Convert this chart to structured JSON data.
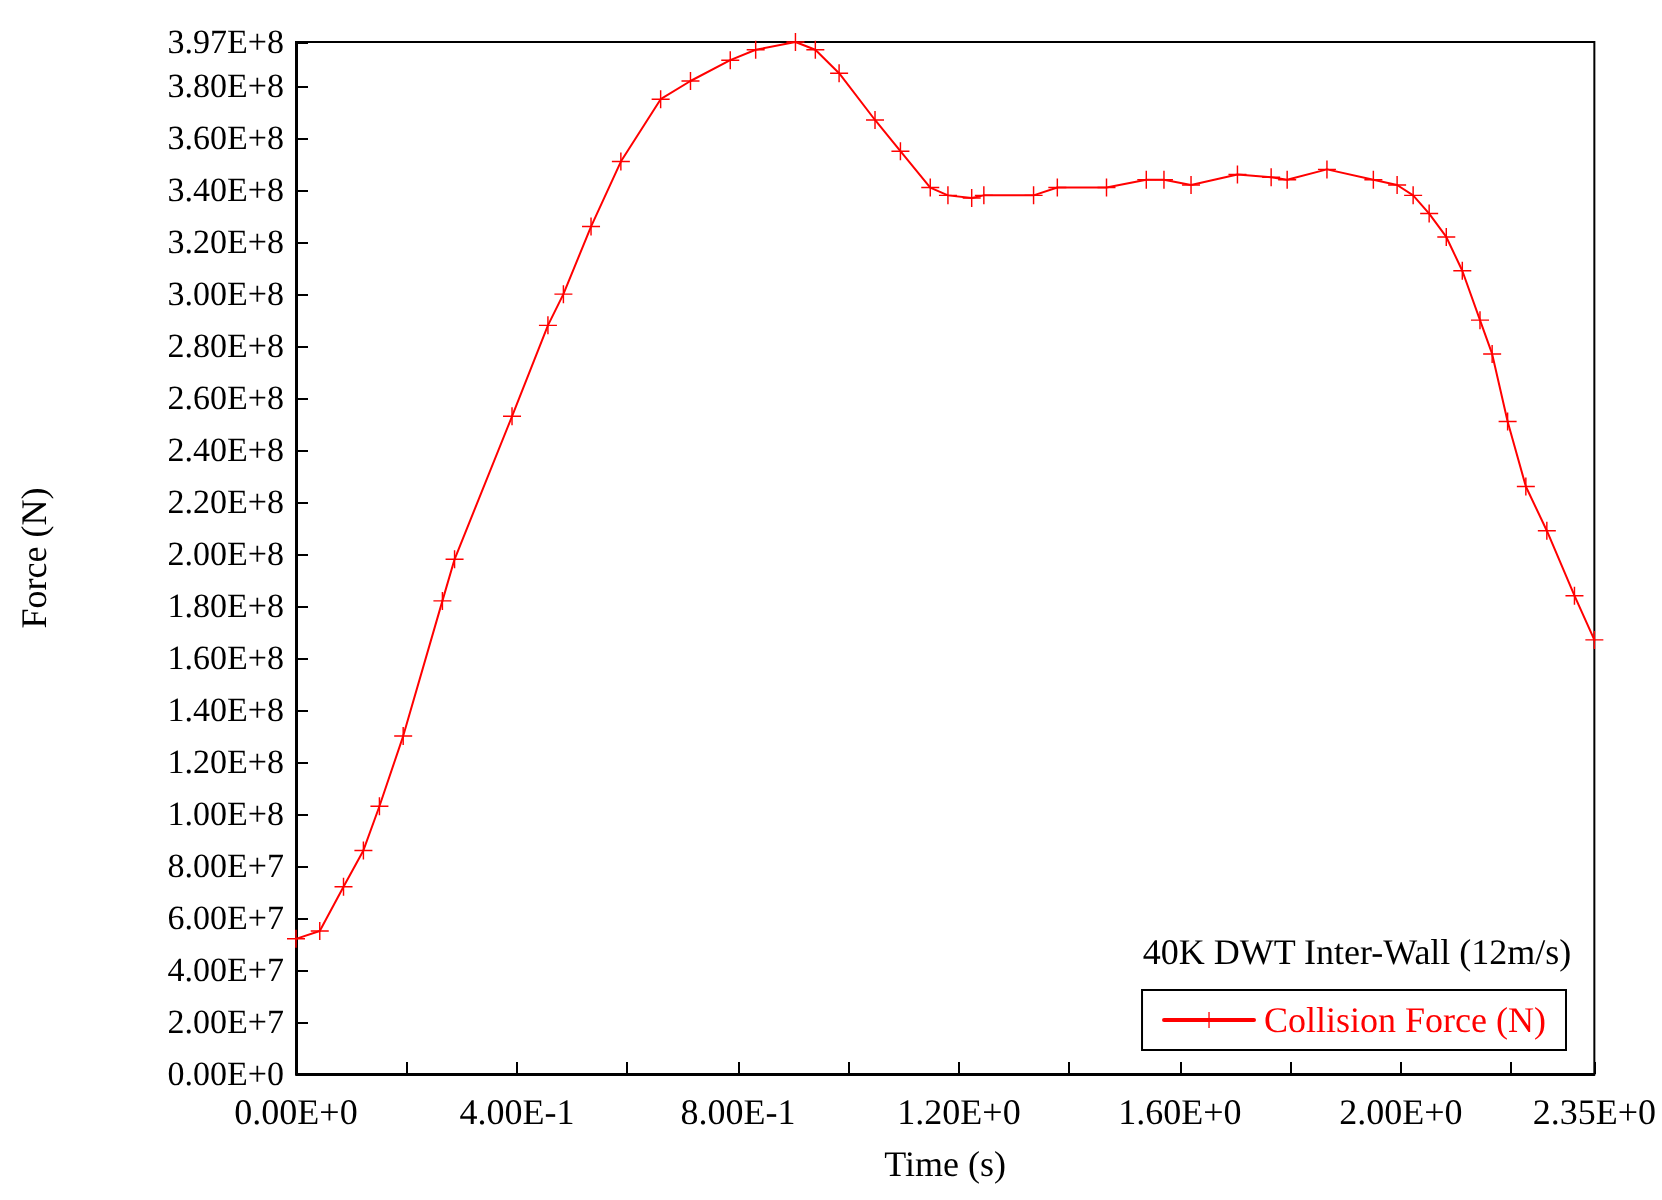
{
  "chart_data": {
    "type": "line",
    "xlabel": "Time (s)",
    "ylabel": "Force (N)",
    "annotations": [
      "40K DWT Inter-Wall (12m/s)"
    ],
    "series": [
      {
        "name": "Collision Force (N)",
        "color": "#ff0000",
        "x": [
          0,
          0.043,
          0.086,
          0.122,
          0.151,
          0.194,
          0.265,
          0.287,
          0.391,
          0.456,
          0.484,
          0.534,
          0.588,
          0.66,
          0.714,
          0.786,
          0.832,
          0.904,
          0.94,
          0.983,
          1.048,
          1.094,
          1.148,
          1.18,
          1.223,
          1.245,
          1.335,
          1.378,
          1.467,
          1.539,
          1.571,
          1.62,
          1.704,
          1.765,
          1.794,
          1.866,
          1.95,
          1.993,
          2.022,
          2.051,
          2.082,
          2.111,
          2.143,
          2.165,
          2.193,
          2.226,
          2.264,
          2.314,
          2.35
        ],
        "values": [
          52000000,
          55000000,
          72000000,
          86000000,
          103000000,
          130000000,
          182000000,
          198000000,
          253000000,
          288000000,
          300000000,
          326000000,
          351000000,
          375000000,
          382000000,
          390000000,
          394000000,
          397000000,
          394000000,
          385000000,
          367000000,
          355000000,
          341000000,
          338000000,
          337000000,
          338000000,
          338000000,
          341000000,
          341000000,
          344000000,
          344000000,
          342000000,
          346000000,
          345000000,
          344000000,
          348000000,
          344000000,
          342000000,
          338000000,
          331000000,
          322000000,
          309000000,
          290000000,
          277000000,
          251000000,
          226000000,
          209000000,
          184000000,
          167000000
        ]
      }
    ],
    "xlim": [
      0,
      2.35
    ],
    "xticks": [
      {
        "value": 0,
        "label": "0.00E+0"
      },
      {
        "value": 0.2,
        "label": null
      },
      {
        "value": 0.4,
        "label": "4.00E-1"
      },
      {
        "value": 0.6,
        "label": null
      },
      {
        "value": 0.8,
        "label": "8.00E-1"
      },
      {
        "value": 1.0,
        "label": null
      },
      {
        "value": 1.2,
        "label": "1.20E+0"
      },
      {
        "value": 1.4,
        "label": null
      },
      {
        "value": 1.6,
        "label": "1.60E+0"
      },
      {
        "value": 1.8,
        "label": null
      },
      {
        "value": 2.0,
        "label": "2.00E+0"
      },
      {
        "value": 2.2,
        "label": null
      },
      {
        "value": 2.35,
        "label": "2.35E+0"
      }
    ],
    "ylim": [
      0,
      397000000
    ],
    "yticks": [
      {
        "value": 0,
        "label": "0.00E+0"
      },
      {
        "value": 20000000,
        "label": "2.00E+7"
      },
      {
        "value": 40000000,
        "label": "4.00E+7"
      },
      {
        "value": 60000000,
        "label": "6.00E+7"
      },
      {
        "value": 80000000,
        "label": "8.00E+7"
      },
      {
        "value": 100000000,
        "label": "1.00E+8"
      },
      {
        "value": 120000000,
        "label": "1.20E+8"
      },
      {
        "value": 140000000,
        "label": "1.40E+8"
      },
      {
        "value": 160000000,
        "label": "1.60E+8"
      },
      {
        "value": 180000000,
        "label": "1.80E+8"
      },
      {
        "value": 200000000,
        "label": "2.00E+8"
      },
      {
        "value": 220000000,
        "label": "2.20E+8"
      },
      {
        "value": 240000000,
        "label": "2.40E+8"
      },
      {
        "value": 260000000,
        "label": "2.60E+8"
      },
      {
        "value": 280000000,
        "label": "2.80E+8"
      },
      {
        "value": 300000000,
        "label": "3.00E+8"
      },
      {
        "value": 320000000,
        "label": "3.20E+8"
      },
      {
        "value": 340000000,
        "label": "3.40E+8"
      },
      {
        "value": 360000000,
        "label": "3.60E+8"
      },
      {
        "value": 380000000,
        "label": "3.80E+8"
      },
      {
        "value": 397000000,
        "label": "3.97E+8"
      }
    ],
    "grid": false,
    "legend": "bottom right",
    "marker": "cross",
    "line_style": "solid"
  }
}
